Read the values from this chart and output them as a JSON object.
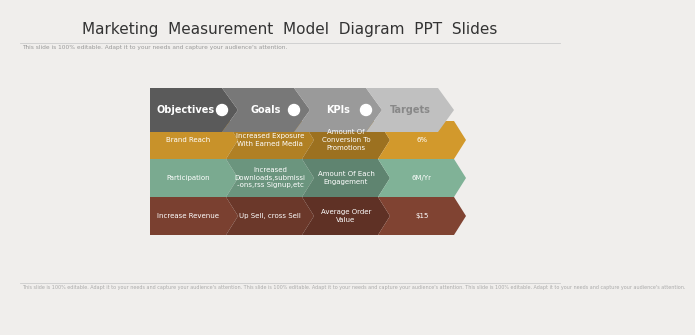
{
  "title": "Marketing  Measurement  Model  Diagram  PPT  Slides",
  "subtitle": "This slide is 100% editable. Adapt it to your needs and capture your audience's attention.",
  "footer": "This slide is 100% editable. Adapt it to your needs and capture your audience's attention. This slide is 100% editable. Adapt it to your needs and capture your audience's attention. This slide is 100% editable. Adapt it to your needs and capture your audience's attention.",
  "bg_color": "#f0eeec",
  "arrow_labels": [
    "Objectives",
    "Goals",
    "KPIs",
    "Targets"
  ],
  "arrow_colors": [
    "#5a5a5a",
    "#787878",
    "#9a9a9a",
    "#c0c0c0"
  ],
  "arrow_text_colors": [
    "#ffffff",
    "#ffffff",
    "#ffffff",
    "#888888"
  ],
  "row_labels": [
    "Brand Reach",
    "Participation",
    "Increase Revenue"
  ],
  "row_col2": [
    "Increased Exposure\nWith Earned Media",
    "Increased\nDownloads,submissi\n-ons,rss Signup,etc",
    "Up Sell, cross Sell"
  ],
  "row_col3": [
    "Amount Of\nConversion To\nPromotions",
    "Amount Of Each\nEngagement",
    "Average Order\nValue"
  ],
  "row_col4": [
    "6%",
    "6M/Yr",
    "$15"
  ],
  "row_base_colors": [
    "#c8922a",
    "#7aaa90",
    "#7a4030"
  ],
  "row_shade_factors": [
    0.0,
    -0.12,
    -0.22,
    0.05
  ],
  "divider_color": "#cccccc",
  "title_color": "#333333",
  "subtitle_color": "#999999",
  "footer_color": "#aaaaaa"
}
